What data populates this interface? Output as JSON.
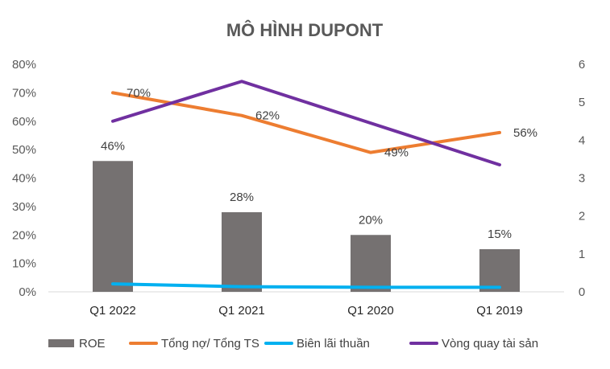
{
  "chart_data": {
    "type": "bar",
    "title": "MÔ HÌNH DUPONT",
    "categories": [
      "Q1 2022",
      "Q1 2021",
      "Q1 2020",
      "Q1 2019"
    ],
    "y_left": {
      "ylim": [
        0,
        0.8
      ],
      "ticks": [
        0,
        0.1,
        0.2,
        0.3,
        0.4,
        0.5,
        0.6,
        0.7,
        0.8
      ],
      "tick_labels": [
        "0%",
        "10%",
        "20%",
        "30%",
        "40%",
        "50%",
        "60%",
        "70%",
        "80%"
      ]
    },
    "y_right": {
      "ylim": [
        0,
        6
      ],
      "ticks": [
        0,
        1,
        2,
        3,
        4,
        5,
        6
      ],
      "tick_labels": [
        "0",
        "1",
        "2",
        "3",
        "4",
        "5",
        "6"
      ]
    },
    "grid": false,
    "legend_position": "bottom",
    "series": [
      {
        "name": "ROE",
        "type": "bar",
        "axis": "left",
        "color": "#757171",
        "values": [
          0.46,
          0.28,
          0.2,
          0.15
        ],
        "labels": [
          "46%",
          "28%",
          "20%",
          "15%"
        ]
      },
      {
        "name": "Tổng nợ/ Tổng TS",
        "type": "line",
        "axis": "left",
        "color": "#ED7D31",
        "values": [
          0.7,
          0.62,
          0.49,
          0.56
        ],
        "labels": [
          "70%",
          "62%",
          "49%",
          "56%"
        ]
      },
      {
        "name": "Biên lãi thuần",
        "type": "line",
        "axis": "left",
        "color": "#00B0F0",
        "values": [
          0.028,
          0.018,
          0.016,
          0.016
        ],
        "labels": []
      },
      {
        "name": "Vòng quay tài sản",
        "type": "line",
        "axis": "right",
        "color": "#7030A0",
        "values": [
          4.5,
          5.55,
          4.45,
          3.35
        ],
        "labels": []
      }
    ]
  }
}
